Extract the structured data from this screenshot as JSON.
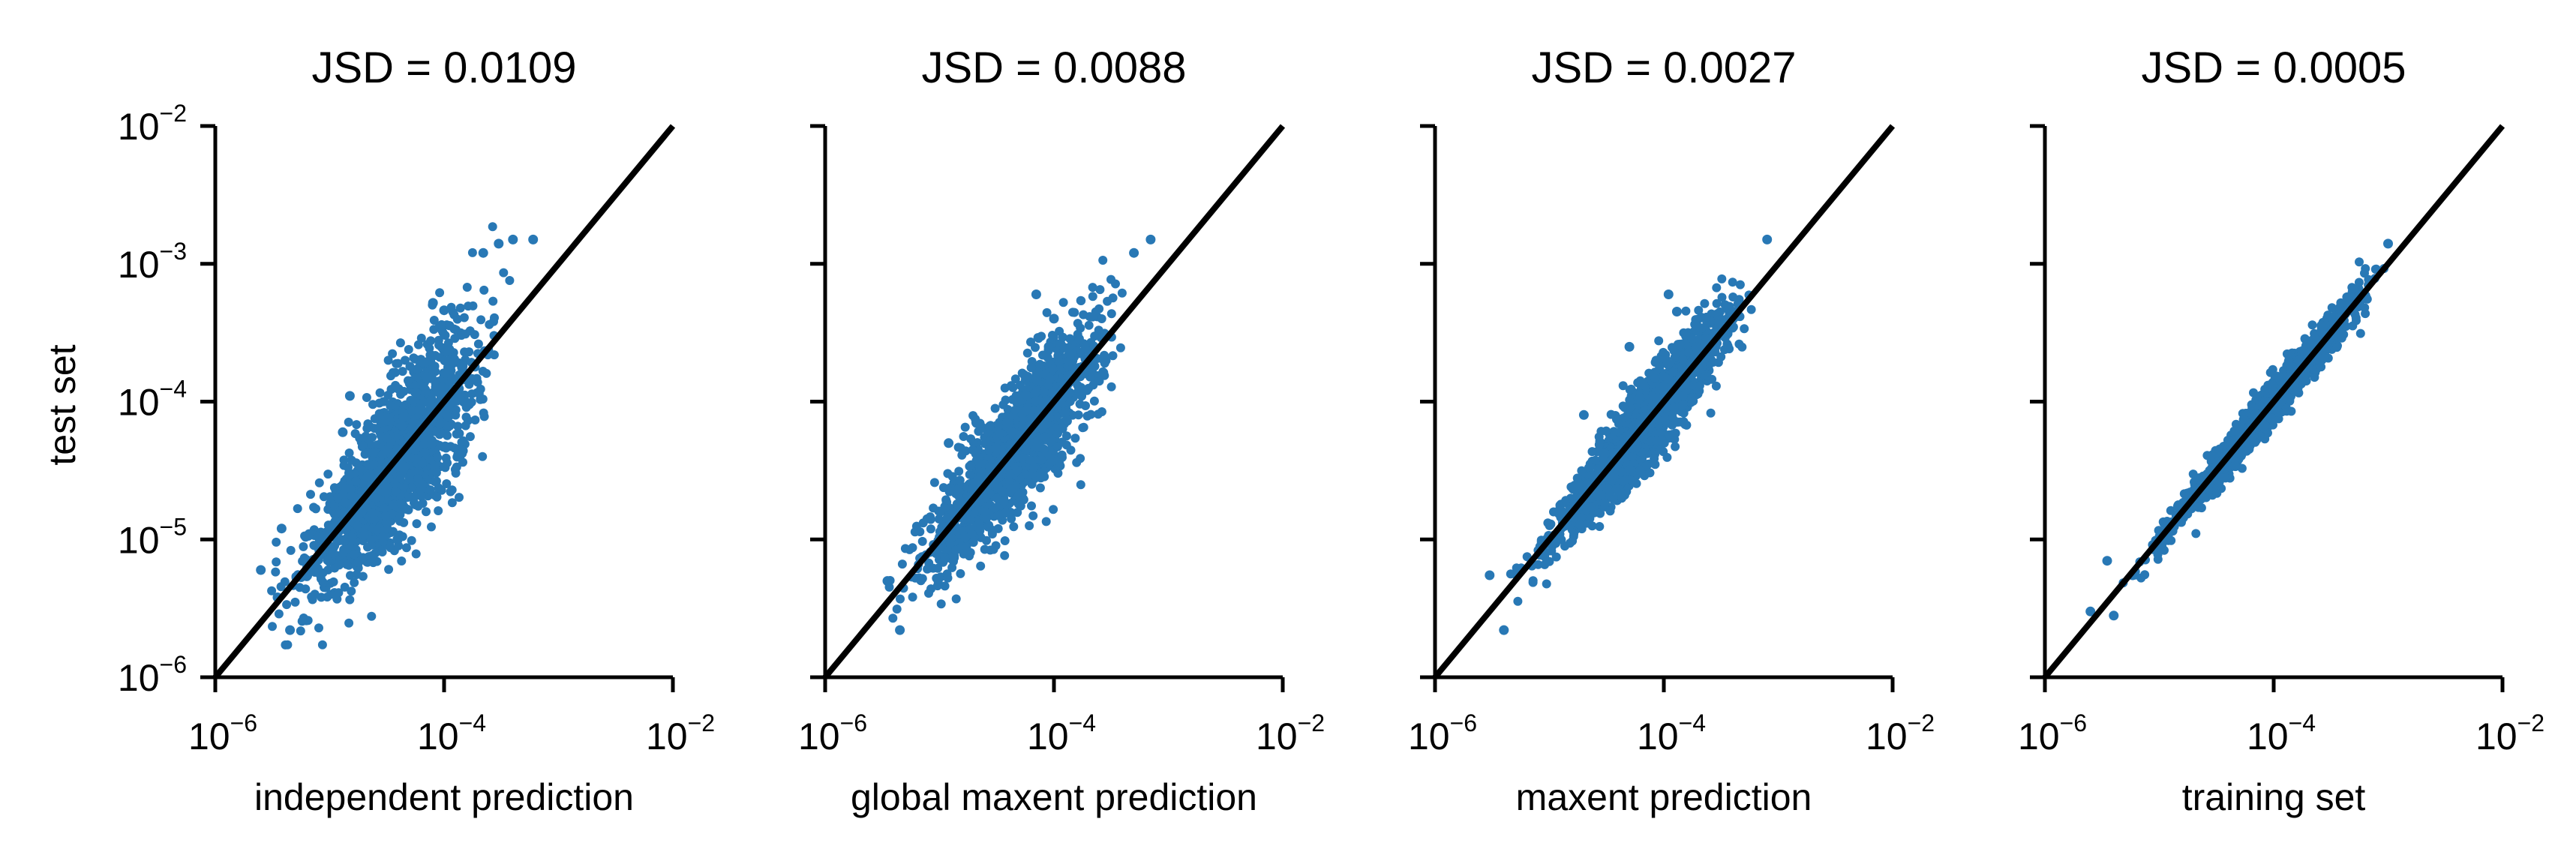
{
  "figure": {
    "ylabel": "test set"
  },
  "chart_data": [
    {
      "type": "scatter",
      "title": "JSD = 0.0109",
      "xlabel": "independent prediction",
      "ylabel": "test set",
      "xscale": "log",
      "yscale": "log",
      "xlim": [
        1e-06,
        0.01
      ],
      "ylim": [
        1e-06,
        0.01
      ],
      "xticks": [
        {
          "base": "10",
          "exp": "−6"
        },
        {
          "base": "10",
          "exp": "−4"
        },
        {
          "base": "10",
          "exp": "−2"
        }
      ],
      "yticks": [
        {
          "base": "10",
          "exp": "−6"
        },
        {
          "base": "10",
          "exp": "−5"
        },
        {
          "base": "10",
          "exp": "−4"
        },
        {
          "base": "10",
          "exp": "−3"
        },
        {
          "base": "10",
          "exp": "−2"
        }
      ],
      "show_y_labels": true,
      "reference_line": "y = x",
      "point_color": "#2878b5",
      "cloud": {
        "x_range_log10": [
          -5.7,
          -3.4
        ],
        "scatter_log10": 0.28
      },
      "points": [
        [
          3.5e-06,
          3.8e-06
        ],
        [
          4.5e-06,
          2.2e-06
        ],
        [
          3.8e-06,
          1.2e-05
        ],
        [
          1.3e-05,
          6e-05
        ],
        [
          8e-05,
          0.00052
        ],
        [
          0.0001,
          0.00046
        ],
        [
          0.0003,
          0.0014
        ],
        [
          0.0004,
          0.0015
        ],
        [
          0.0006,
          0.0015
        ],
        [
          0.00022,
          0.0012
        ],
        [
          1.5e-05,
          0.00011
        ],
        [
          2.5e-06,
          6e-06
        ]
      ]
    },
    {
      "type": "scatter",
      "title": "JSD = 0.0088",
      "xlabel": "global maxent prediction",
      "xscale": "log",
      "yscale": "log",
      "xlim": [
        1e-06,
        0.01
      ],
      "ylim": [
        1e-06,
        0.01
      ],
      "xticks": [
        {
          "base": "10",
          "exp": "−6"
        },
        {
          "base": "10",
          "exp": "−4"
        },
        {
          "base": "10",
          "exp": "−2"
        }
      ],
      "yticks": [],
      "show_y_labels": false,
      "reference_line": "y = x",
      "point_color": "#2878b5",
      "cloud": {
        "x_range_log10": [
          -5.6,
          -3.3
        ],
        "scatter_log10": 0.22
      },
      "points": [
        [
          4.5e-06,
          2.2e-06
        ],
        [
          3.5e-06,
          5e-06
        ],
        [
          7e-05,
          0.0006
        ],
        [
          0.0001,
          0.0004
        ],
        [
          0.0007,
          0.0015
        ],
        [
          0.0005,
          0.0012
        ],
        [
          9e-05,
          0.00025
        ],
        [
          1.2e-05,
          5e-05
        ]
      ]
    },
    {
      "type": "scatter",
      "title": "JSD = 0.0027",
      "xlabel": "maxent prediction",
      "xscale": "log",
      "yscale": "log",
      "xlim": [
        1e-06,
        0.01
      ],
      "ylim": [
        1e-06,
        0.01
      ],
      "xticks": [
        {
          "base": "10",
          "exp": "−6"
        },
        {
          "base": "10",
          "exp": "−4"
        },
        {
          "base": "10",
          "exp": "−2"
        }
      ],
      "yticks": [],
      "show_y_labels": false,
      "reference_line": "y = x",
      "point_color": "#2878b5",
      "cloud": {
        "x_range_log10": [
          -5.5,
          -3.1
        ],
        "scatter_log10": 0.14
      },
      "points": [
        [
          4e-06,
          2.2e-06
        ],
        [
          3e-06,
          5.5e-06
        ],
        [
          0.00011,
          0.0006
        ],
        [
          0.00013,
          0.00045
        ],
        [
          0.0008,
          0.0015
        ],
        [
          2e-05,
          8e-05
        ],
        [
          5e-05,
          0.00025
        ]
      ]
    },
    {
      "type": "scatter",
      "title": "JSD = 0.0005",
      "xlabel": "training set",
      "xscale": "log",
      "yscale": "log",
      "xlim": [
        1e-06,
        0.01
      ],
      "ylim": [
        1e-06,
        0.01
      ],
      "xticks": [
        {
          "base": "10",
          "exp": "−6"
        },
        {
          "base": "10",
          "exp": "−4"
        },
        {
          "base": "10",
          "exp": "−2"
        }
      ],
      "yticks": [],
      "show_y_labels": false,
      "reference_line": "y = x",
      "point_color": "#2878b5",
      "cloud": {
        "x_range_log10": [
          -5.5,
          -2.95
        ],
        "scatter_log10": 0.07
      },
      "points": [
        [
          2.5e-06,
          3e-06
        ],
        [
          3.5e-06,
          7e-06
        ],
        [
          4e-06,
          2.8e-06
        ],
        [
          0.001,
          0.0014
        ]
      ]
    }
  ]
}
